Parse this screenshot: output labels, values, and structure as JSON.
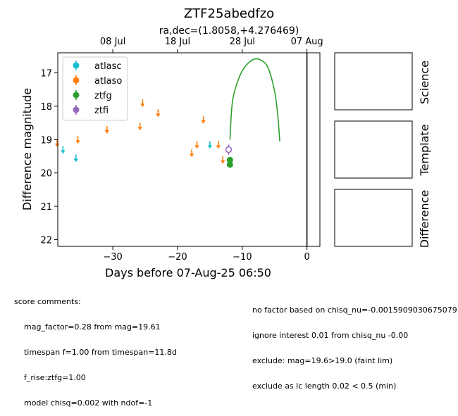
{
  "title": "ZTF25abedfzo",
  "subtitle": "ra,dec=(1.8058,+4.276469)",
  "chart_data": {
    "type": "scatter",
    "xlabel": "Days before 07-Aug-25 06:50",
    "ylabel": "Difference magnitude",
    "xlim": [
      -38.5,
      2
    ],
    "ylim": [
      22.2,
      16.4
    ],
    "y_inverted": true,
    "x_ticks": [
      -30,
      -20,
      -10,
      0
    ],
    "y_ticks": [
      17,
      18,
      19,
      20,
      21,
      22
    ],
    "top_axis_ticks": [
      {
        "x": -30.0,
        "label": "08 Jul"
      },
      {
        "x": -20.0,
        "label": "18 Jul"
      },
      {
        "x": -10.0,
        "label": "28 Jul"
      },
      {
        "x": 0.0,
        "label": "07 Aug"
      }
    ],
    "legend_position": "upper-left",
    "series": [
      {
        "name": "atlasc",
        "color": "#17becf",
        "upper_limits": [
          [
            -37.7,
            19.3
          ],
          [
            -35.7,
            19.55
          ],
          [
            -15.0,
            19.15
          ]
        ]
      },
      {
        "name": "atlaso",
        "color": "#ff7f0e",
        "upper_limits": [
          [
            -38.6,
            19.1
          ],
          [
            -35.4,
            19.0
          ],
          [
            -30.9,
            18.7
          ],
          [
            -25.8,
            18.6
          ],
          [
            -25.4,
            17.9
          ],
          [
            -23.0,
            18.2
          ],
          [
            -17.8,
            19.4
          ],
          [
            -17.0,
            19.15
          ],
          [
            -16.0,
            18.4
          ],
          [
            -13.7,
            19.15
          ],
          [
            -13.0,
            19.6
          ]
        ]
      },
      {
        "name": "ztfg",
        "color": "#2ca02c",
        "points": [
          [
            -11.9,
            19.61,
            0.06
          ],
          [
            -11.9,
            19.75,
            0.06
          ]
        ]
      },
      {
        "name": "ztfi",
        "color": "#9467bd",
        "open_points": [
          [
            -12.1,
            19.3,
            0.15
          ]
        ]
      }
    ],
    "model_curve": {
      "color": "#2ca02c",
      "points": [
        [
          -11.9,
          19.0
        ],
        [
          -11.5,
          17.85
        ],
        [
          -10.5,
          17.15
        ],
        [
          -9.5,
          16.8
        ],
        [
          -8.5,
          16.62
        ],
        [
          -7.8,
          16.58
        ],
        [
          -7.0,
          16.63
        ],
        [
          -6.0,
          16.85
        ],
        [
          -5.0,
          17.55
        ],
        [
          -4.5,
          18.3
        ],
        [
          -4.2,
          19.05
        ]
      ]
    },
    "vertical_line_x": 0
  },
  "side_panels": [
    "Science",
    "Template",
    "Difference"
  ],
  "comments_left": [
    "score comments:",
    "    mag_factor=0.28 from mag=19.61",
    "    timespan f=1.00 from timespan=11.8d",
    "    f_rise:ztfg=1.00",
    "    model chisq=0.002 with ndof=-1"
  ],
  "comments_right": [
    "no factor based on chisq_nu=-0.0015909030675079",
    "ignore interest 0.01 from chisq_nu -0.00",
    "exclude: mag=19.6>19.0 (faint lim)",
    "exclude as lc length 0.02 < 0.5 (min)"
  ]
}
